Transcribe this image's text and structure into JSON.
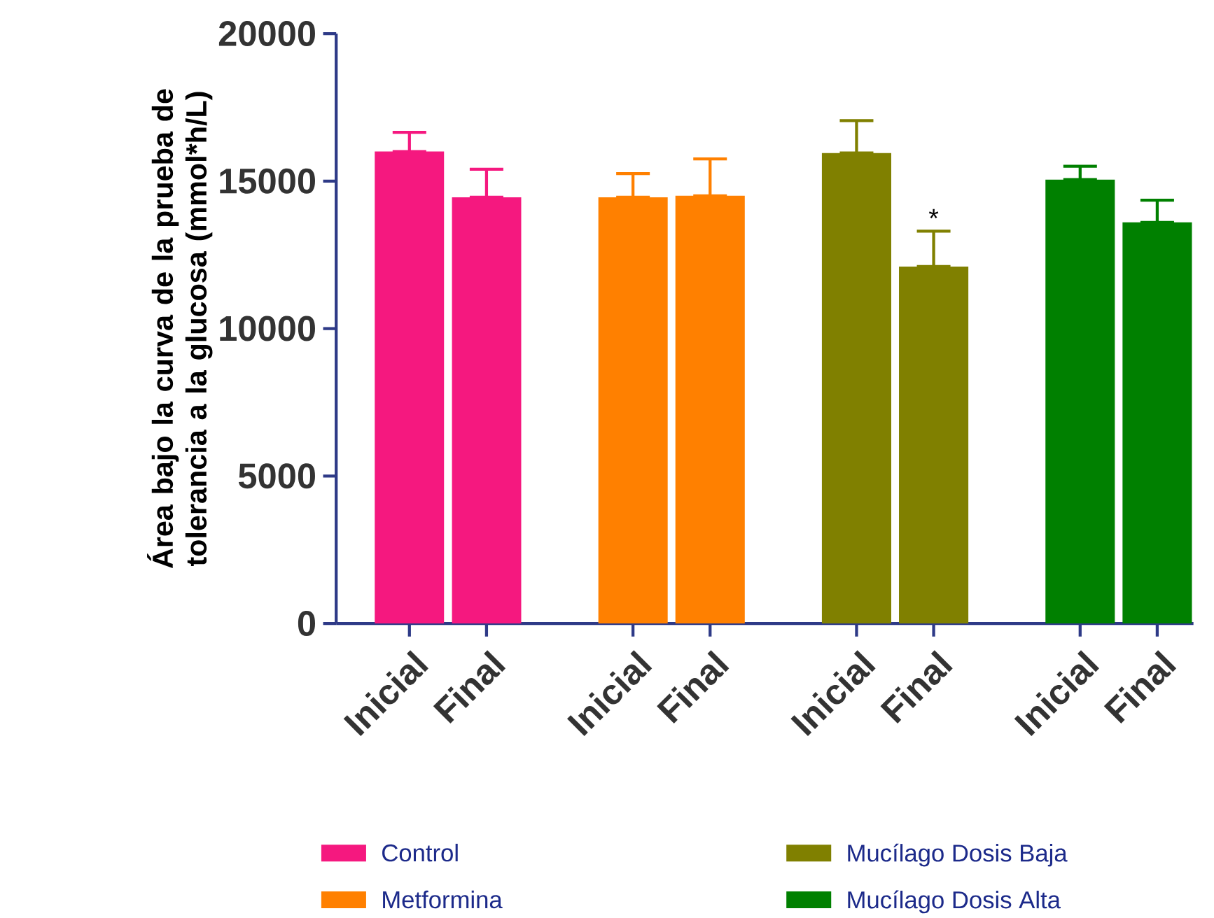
{
  "chart_data": {
    "type": "bar",
    "ylabel": "Área bajo la curva de la prueba de tolerancia a la glucosa (mmol*h/L)",
    "categories": [
      "Inicial",
      "Final",
      "Inicial",
      "Final",
      "Inicial",
      "Final",
      "Inicial",
      "Final"
    ],
    "series": [
      {
        "name": "Control",
        "color": "#f5187f",
        "values": [
          16000,
          14450,
          null,
          null,
          null,
          null,
          null,
          null
        ],
        "errors": [
          [
            16000,
            16650
          ],
          [
            14450,
            15400
          ],
          null,
          null,
          null,
          null,
          null,
          null
        ]
      },
      {
        "name": "Metformina",
        "color": "#ff8000",
        "values": [
          null,
          null,
          14450,
          14500,
          null,
          null,
          null,
          null
        ],
        "errors": [
          null,
          null,
          [
            14450,
            15250
          ],
          [
            14500,
            15750
          ],
          null,
          null,
          null,
          null
        ]
      },
      {
        "name": "Mucílago Dosis Baja",
        "color": "#808000",
        "values": [
          null,
          null,
          null,
          null,
          15950,
          12100,
          null,
          null
        ],
        "errors": [
          null,
          null,
          null,
          null,
          [
            15950,
            17050
          ],
          [
            12100,
            13300
          ],
          null,
          null
        ],
        "value_labels": [
          null,
          null,
          null,
          null,
          null,
          "*",
          null,
          null
        ]
      },
      {
        "name": "Mucílago Dosis Alta",
        "color": "#008000",
        "values": [
          null,
          null,
          null,
          null,
          null,
          null,
          15050,
          13600
        ],
        "errors": [
          null,
          null,
          null,
          null,
          null,
          null,
          [
            15050,
            15500
          ],
          [
            13600,
            14350
          ]
        ]
      }
    ],
    "ylim": [
      0,
      20000
    ],
    "yticks": [
      0,
      5000,
      10000,
      15000,
      20000
    ],
    "legend": "bottom"
  }
}
